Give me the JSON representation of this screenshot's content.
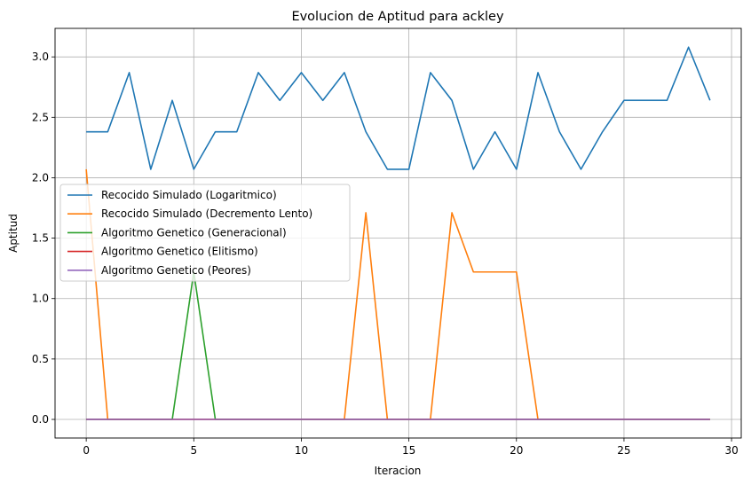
{
  "chart_data": {
    "type": "line",
    "title": "Evolucion de Aptitud para ackley",
    "xlabel": "Iteracion",
    "ylabel": "Aptitud",
    "xlim": [
      -1.45,
      30.45
    ],
    "ylim": [
      -0.154,
      3.236
    ],
    "xticks": [
      0,
      5,
      10,
      15,
      20,
      25,
      30
    ],
    "yticks": [
      0.0,
      0.5,
      1.0,
      1.5,
      2.0,
      2.5,
      3.0
    ],
    "xtick_labels": [
      "0",
      "5",
      "10",
      "15",
      "20",
      "25",
      "30"
    ],
    "ytick_labels": [
      "0.0",
      "0.5",
      "1.0",
      "1.5",
      "2.0",
      "2.5",
      "3.0"
    ],
    "grid": true,
    "legend_position": "center-left",
    "x": [
      0,
      1,
      2,
      3,
      4,
      5,
      6,
      7,
      8,
      9,
      10,
      11,
      12,
      13,
      14,
      15,
      16,
      17,
      18,
      19,
      20,
      21,
      22,
      23,
      24,
      25,
      26,
      27,
      28,
      29
    ],
    "series": [
      {
        "name": "Recocido Simulado (Logaritmico)",
        "color": "#1f77b4",
        "values": [
          2.38,
          2.38,
          2.87,
          2.07,
          2.64,
          2.07,
          2.38,
          2.38,
          2.87,
          2.64,
          2.87,
          2.64,
          2.87,
          2.38,
          2.07,
          2.07,
          2.87,
          2.64,
          2.07,
          2.38,
          2.07,
          2.87,
          2.38,
          2.07,
          2.38,
          2.64,
          2.64,
          2.64,
          3.08,
          2.64
        ]
      },
      {
        "name": "Recocido Simulado (Decremento Lento)",
        "color": "#ff7f0e",
        "values": [
          2.07,
          0,
          0,
          0,
          0,
          0,
          0,
          0,
          0,
          0,
          0,
          0,
          0,
          1.71,
          0,
          0,
          0,
          1.71,
          1.22,
          1.22,
          1.22,
          0,
          0,
          0,
          0,
          0,
          0,
          0,
          0,
          0
        ]
      },
      {
        "name": "Algoritmo Genetico (Generacional)",
        "color": "#2ca02c",
        "values": [
          0,
          0,
          0,
          0,
          0,
          1.22,
          0,
          0,
          0,
          0,
          0,
          0,
          0,
          0,
          0,
          0,
          0,
          0,
          0,
          0,
          0,
          0,
          0,
          0,
          0,
          0,
          0,
          0,
          0,
          0
        ]
      },
      {
        "name": "Algoritmo Genetico (Elitismo)",
        "color": "#d62728",
        "values": [
          0,
          0,
          0,
          0,
          0,
          0,
          0,
          0,
          0,
          0,
          0,
          0,
          0,
          0,
          0,
          0,
          0,
          0,
          0,
          0,
          0,
          0,
          0,
          0,
          0,
          0,
          0,
          0,
          0,
          0
        ]
      },
      {
        "name": "Algoritmo Genetico (Peores)",
        "color": "#9467bd",
        "values": [
          0,
          0,
          0,
          0,
          0,
          0,
          0,
          0,
          0,
          0,
          0,
          0,
          0,
          0,
          0,
          0,
          0,
          0,
          0,
          0,
          0,
          0,
          0,
          0,
          0,
          0,
          0,
          0,
          0,
          0
        ]
      }
    ]
  }
}
